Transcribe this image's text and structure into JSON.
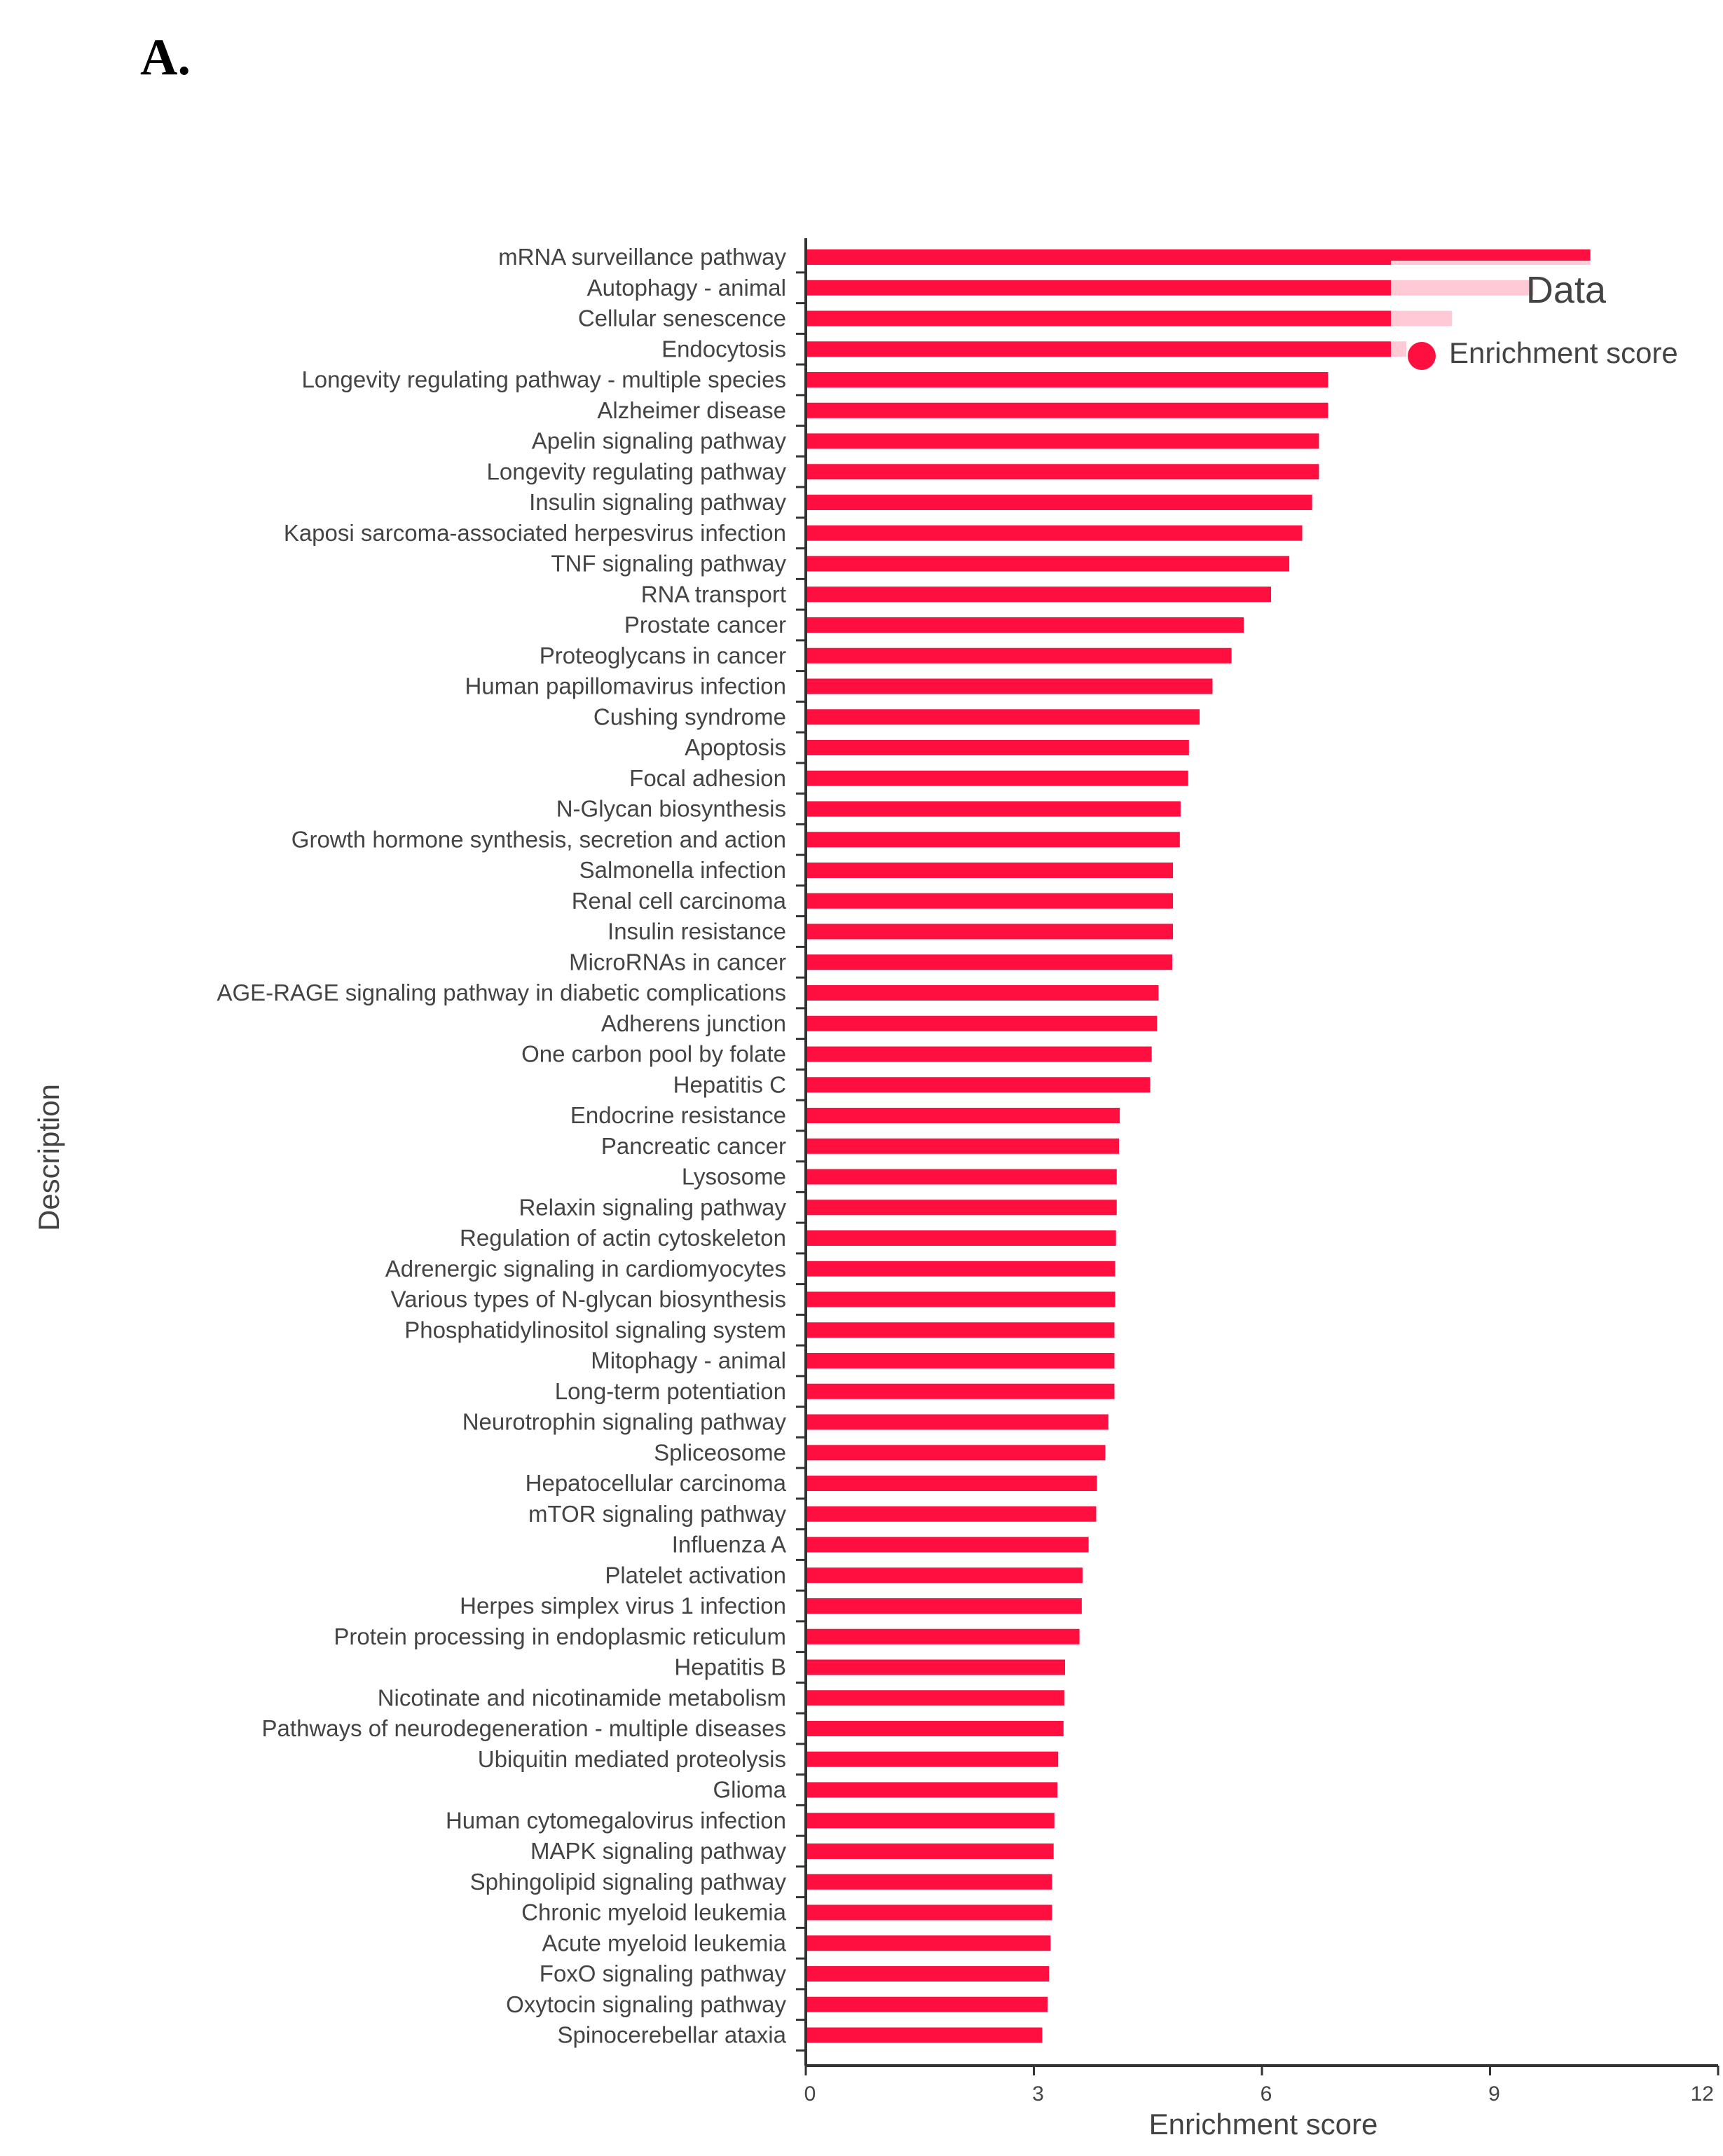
{
  "panel_label": "A.",
  "legend": {
    "title": "Data",
    "label": "Enrichment score"
  },
  "colors": {
    "bar": "#ff0e40",
    "axis": "#333333",
    "text": "#444444"
  },
  "chart_data": {
    "type": "bar",
    "orientation": "horizontal",
    "xlabel": "Enrichment score",
    "ylabel": "Description",
    "xlim": [
      0,
      12
    ],
    "xticks": [
      0,
      3,
      6,
      9,
      12
    ],
    "grid": false,
    "legend_position": "top-right",
    "categories": [
      "mRNA surveillance pathway",
      "Autophagy - animal",
      "Cellular senescence",
      "Endocytosis",
      "Longevity regulating pathway - multiple species",
      "Alzheimer disease",
      "Apelin signaling pathway",
      "Longevity regulating pathway",
      "Insulin signaling pathway",
      "Kaposi sarcoma-associated herpesvirus infection",
      "TNF signaling pathway",
      "RNA transport",
      "Prostate cancer",
      "Proteoglycans in cancer",
      "Human papillomavirus infection",
      "Cushing syndrome",
      "Apoptosis",
      "Focal adhesion",
      "N-Glycan biosynthesis",
      "Growth hormone synthesis, secretion and action",
      "Salmonella infection",
      "Renal cell carcinoma",
      "Insulin resistance",
      "MicroRNAs in cancer",
      "AGE-RAGE signaling pathway in diabetic complications",
      "Adherens junction",
      "One carbon pool by folate",
      "Hepatitis C",
      "Endocrine resistance",
      "Pancreatic cancer",
      "Lysosome",
      "Relaxin signaling pathway",
      "Regulation of actin cytoskeleton",
      "Adrenergic signaling in cardiomyocytes",
      "Various types of N-glycan biosynthesis",
      "Phosphatidylinositol signaling system",
      "Mitophagy - animal",
      "Long-term potentiation",
      "Neurotrophin signaling pathway",
      "Spliceosome",
      "Hepatocellular carcinoma",
      "mTOR signaling pathway",
      "Influenza A",
      "Platelet activation",
      "Herpes simplex virus 1 infection",
      "Protein processing in endoplasmic reticulum",
      "Hepatitis B",
      "Nicotinate and nicotinamide metabolism",
      "Pathways of neurodegeneration - multiple diseases",
      "Ubiquitin mediated proteolysis",
      "Glioma",
      "Human cytomegalovirus infection",
      "MAPK signaling pathway",
      "Sphingolipid signaling pathway",
      "Chronic myeloid leukemia",
      "Acute myeloid leukemia",
      "FoxO signaling pathway",
      "Oxytocin signaling pathway",
      "Spinocerebellar ataxia"
    ],
    "series": [
      {
        "name": "Enrichment score",
        "values": [
          10.32,
          9.57,
          8.5,
          7.9,
          6.87,
          6.87,
          6.75,
          6.75,
          6.66,
          6.53,
          6.36,
          6.12,
          5.76,
          5.6,
          5.35,
          5.18,
          5.04,
          5.03,
          4.93,
          4.92,
          4.83,
          4.83,
          4.83,
          4.82,
          4.64,
          4.62,
          4.55,
          4.53,
          4.13,
          4.12,
          4.09,
          4.09,
          4.08,
          4.07,
          4.07,
          4.06,
          4.06,
          4.06,
          3.98,
          3.94,
          3.83,
          3.82,
          3.72,
          3.64,
          3.63,
          3.6,
          3.41,
          3.4,
          3.39,
          3.32,
          3.31,
          3.27,
          3.26,
          3.24,
          3.24,
          3.22,
          3.2,
          3.18,
          3.11
        ]
      }
    ]
  }
}
